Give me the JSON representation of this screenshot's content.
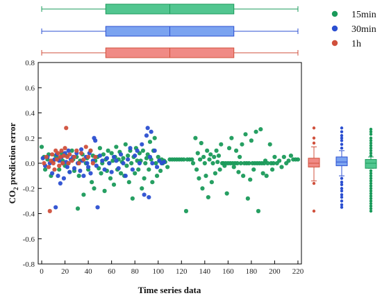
{
  "chart_data": {
    "type": "scatter",
    "xlabel": "Time series data",
    "ylabel_main": "CO",
    "ylabel_sub": "2",
    "ylabel_rest": " prediction error",
    "xlim": [
      -3,
      223
    ],
    "ylim": [
      -0.8,
      0.8
    ],
    "xticks": [
      "0",
      "20",
      "40",
      "60",
      "80",
      "100",
      "120",
      "140",
      "160",
      "180",
      "200",
      "220"
    ],
    "yticks": [
      "0.8",
      "0.6",
      "0.4",
      "0.2",
      "0.0",
      "-0.2",
      "-0.4",
      "-0.6",
      "-0.8"
    ],
    "legend_position": "top-right",
    "colors": {
      "15min": "#1a9a5a",
      "30min": "#2b4fd1",
      "1h": "#d0503c",
      "15min_box": "#52c690",
      "30min_box": "#7ba3f0",
      "1h_box": "#f08a85"
    },
    "series": [
      {
        "name": "15min",
        "color": "#1a9a5a",
        "box": {
          "min": 0,
          "q1": 55,
          "median": 110,
          "q3": 165,
          "max": 220
        },
        "points": [
          [
            0,
            0.13
          ],
          [
            2,
            0.05
          ],
          [
            3,
            -0.05
          ],
          [
            5,
            0.03
          ],
          [
            6,
            0.07
          ],
          [
            8,
            -0.1
          ],
          [
            10,
            0.02
          ],
          [
            12,
            0.06
          ],
          [
            14,
            0.04
          ],
          [
            15,
            -0.05
          ],
          [
            17,
            0.08
          ],
          [
            18,
            0.02
          ],
          [
            20,
            -0.02
          ],
          [
            21,
            0.06
          ],
          [
            23,
            0.0
          ],
          [
            24,
            -0.07
          ],
          [
            26,
            0.1
          ],
          [
            27,
            0.03
          ],
          [
            28,
            -0.06
          ],
          [
            30,
            0.05
          ],
          [
            31,
            -0.36
          ],
          [
            32,
            -0.1
          ],
          [
            33,
            0.02
          ],
          [
            35,
            0.07
          ],
          [
            36,
            -0.25
          ],
          [
            38,
            0.0
          ],
          [
            39,
            0.04
          ],
          [
            40,
            -0.05
          ],
          [
            42,
            0.1
          ],
          [
            43,
            -0.15
          ],
          [
            44,
            0.06
          ],
          [
            45,
            -0.2
          ],
          [
            46,
            0.02
          ],
          [
            48,
            0.05
          ],
          [
            49,
            -0.04
          ],
          [
            50,
            0.12
          ],
          [
            51,
            -0.08
          ],
          [
            52,
            0.0
          ],
          [
            53,
            0.07
          ],
          [
            54,
            -0.22
          ],
          [
            55,
            0.03
          ],
          [
            56,
            -0.06
          ],
          [
            57,
            0.1
          ],
          [
            58,
            0.0
          ],
          [
            59,
            -0.12
          ],
          [
            60,
            0.08
          ],
          [
            61,
            0.02
          ],
          [
            62,
            -0.17
          ],
          [
            63,
            0.05
          ],
          [
            64,
            0.13
          ],
          [
            65,
            -0.05
          ],
          [
            66,
            0.03
          ],
          [
            67,
            0.09
          ],
          [
            68,
            -0.08
          ],
          [
            69,
            0.01
          ],
          [
            70,
            0.04
          ],
          [
            71,
            -0.1
          ],
          [
            72,
            0.15
          ],
          [
            73,
            -0.02
          ],
          [
            74,
            0.06
          ],
          [
            75,
            -0.15
          ],
          [
            76,
            0.1
          ],
          [
            77,
            0.0
          ],
          [
            78,
            -0.28
          ],
          [
            79,
            0.05
          ],
          [
            80,
            -0.08
          ],
          [
            81,
            0.12
          ],
          [
            82,
            0.02
          ],
          [
            83,
            -0.05
          ],
          [
            84,
            0.08
          ],
          [
            85,
            0.02
          ],
          [
            86,
            -0.2
          ],
          [
            87,
            0.1
          ],
          [
            88,
            -0.12
          ],
          [
            89,
            0.0
          ],
          [
            90,
            0.04
          ],
          [
            91,
            0.07
          ],
          [
            92,
            -0.05
          ],
          [
            93,
            0.17
          ],
          [
            94,
            0.03
          ],
          [
            95,
            -0.15
          ],
          [
            96,
            0.1
          ],
          [
            97,
            0.2
          ],
          [
            98,
            0.0
          ],
          [
            99,
            -0.1
          ],
          [
            100,
            0.05
          ],
          [
            101,
            0.02
          ],
          [
            102,
            -0.06
          ],
          [
            103,
            0.03
          ],
          [
            104,
            0.0
          ],
          [
            105,
            0.02
          ],
          [
            106,
            0.01
          ],
          [
            108,
            -0.03
          ],
          [
            110,
            0.03
          ],
          [
            112,
            0.03
          ],
          [
            114,
            0.03
          ],
          [
            116,
            0.03
          ],
          [
            118,
            0.03
          ],
          [
            120,
            0.03
          ],
          [
            122,
            0.03
          ],
          [
            124,
            -0.38
          ],
          [
            125,
            0.03
          ],
          [
            127,
            0.03
          ],
          [
            129,
            0.03
          ],
          [
            130,
            0.0
          ],
          [
            132,
            0.2
          ],
          [
            133,
            -0.05
          ],
          [
            134,
            0.08
          ],
          [
            135,
            -0.12
          ],
          [
            136,
            0.03
          ],
          [
            137,
            0.16
          ],
          [
            138,
            -0.2
          ],
          [
            139,
            0.05
          ],
          [
            140,
            0.0
          ],
          [
            141,
            -0.1
          ],
          [
            142,
            0.1
          ],
          [
            143,
            -0.27
          ],
          [
            144,
            0.03
          ],
          [
            145,
            0.07
          ],
          [
            146,
            -0.15
          ],
          [
            147,
            0.0
          ],
          [
            148,
            0.05
          ],
          [
            149,
            -0.08
          ],
          [
            150,
            0.1
          ],
          [
            151,
            0.01
          ],
          [
            152,
            0.06
          ],
          [
            153,
            -0.05
          ],
          [
            154,
            0.15
          ],
          [
            155,
            0.0
          ],
          [
            156,
            0.0
          ],
          [
            157,
            -0.02
          ],
          [
            158,
            0.0
          ],
          [
            159,
            -0.24
          ],
          [
            160,
            0.0
          ],
          [
            161,
            0.12
          ],
          [
            162,
            0.0
          ],
          [
            163,
            0.2
          ],
          [
            164,
            0.0
          ],
          [
            165,
            -0.03
          ],
          [
            166,
            0.0
          ],
          [
            167,
            0.1
          ],
          [
            168,
            0.0
          ],
          [
            169,
            -0.07
          ],
          [
            170,
            0.05
          ],
          [
            171,
            0.0
          ],
          [
            172,
            0.15
          ],
          [
            173,
            -0.1
          ],
          [
            174,
            0.0
          ],
          [
            175,
            0.23
          ],
          [
            176,
            0.0
          ],
          [
            177,
            -0.28
          ],
          [
            178,
            0.0
          ],
          [
            179,
            -0.13
          ],
          [
            180,
            0.18
          ],
          [
            181,
            0.0
          ],
          [
            182,
            -0.05
          ],
          [
            183,
            0.0
          ],
          [
            184,
            0.25
          ],
          [
            185,
            0.0
          ],
          [
            186,
            -0.38
          ],
          [
            187,
            0.0
          ],
          [
            188,
            0.27
          ],
          [
            189,
            0.0
          ],
          [
            190,
            -0.08
          ],
          [
            191,
            0.0
          ],
          [
            192,
            0.02
          ],
          [
            193,
            -0.1
          ],
          [
            194,
            0.0
          ],
          [
            196,
            0.15
          ],
          [
            197,
            0.0
          ],
          [
            198,
            -0.05
          ],
          [
            199,
            0.0
          ],
          [
            200,
            0.05
          ],
          [
            202,
            0.0
          ],
          [
            204,
            0.02
          ],
          [
            206,
            -0.03
          ],
          [
            208,
            0.05
          ],
          [
            210,
            0.0
          ],
          [
            212,
            0.02
          ],
          [
            214,
            0.06
          ],
          [
            216,
            0.03
          ],
          [
            218,
            0.03
          ],
          [
            220,
            0.03
          ]
        ]
      },
      {
        "name": "30min",
        "color": "#2b4fd1",
        "box": {
          "min": 0,
          "q1": 55,
          "median": 110,
          "q3": 165,
          "max": 220
        },
        "points": [
          [
            1,
            0.04
          ],
          [
            3,
            -0.02
          ],
          [
            5,
            0.05
          ],
          [
            7,
            0.0
          ],
          [
            9,
            -0.08
          ],
          [
            11,
            0.03
          ],
          [
            12,
            -0.35
          ],
          [
            13,
            0.07
          ],
          [
            14,
            -0.1
          ],
          [
            15,
            0.02
          ],
          [
            16,
            -0.16
          ],
          [
            17,
            0.05
          ],
          [
            18,
            0.0
          ],
          [
            19,
            -0.12
          ],
          [
            20,
            0.08
          ],
          [
            21,
            0.01
          ],
          [
            22,
            -0.03
          ],
          [
            23,
            0.1
          ],
          [
            24,
            -0.07
          ],
          [
            25,
            0.03
          ],
          [
            27,
            0.05
          ],
          [
            28,
            -0.04
          ],
          [
            30,
            0.08
          ],
          [
            31,
            0.0
          ],
          [
            33,
            -0.06
          ],
          [
            34,
            0.11
          ],
          [
            35,
            0.02
          ],
          [
            36,
            -0.1
          ],
          [
            38,
            0.05
          ],
          [
            39,
            0.0
          ],
          [
            40,
            -0.03
          ],
          [
            41,
            0.08
          ],
          [
            42,
            -0.08
          ],
          [
            44,
            0.02
          ],
          [
            45,
            0.2
          ],
          [
            46,
            0.18
          ],
          [
            47,
            -0.02
          ],
          [
            48,
            -0.35
          ],
          [
            50,
            0.06
          ],
          [
            52,
            0.02
          ],
          [
            54,
            -0.05
          ],
          [
            56,
            0.04
          ],
          [
            58,
            0.0
          ],
          [
            60,
            -0.07
          ],
          [
            62,
            0.05
          ],
          [
            64,
            0.02
          ],
          [
            66,
            -0.04
          ],
          [
            68,
            0.07
          ],
          [
            70,
            0.0
          ],
          [
            72,
            -0.1
          ],
          [
            74,
            0.03
          ],
          [
            76,
            0.12
          ],
          [
            78,
            -0.05
          ],
          [
            80,
            0.06
          ],
          [
            82,
            0.1
          ],
          [
            84,
            0.0
          ],
          [
            86,
            0.15
          ],
          [
            88,
            -0.25
          ],
          [
            90,
            0.22
          ],
          [
            91,
            0.28
          ],
          [
            92,
            -0.27
          ],
          [
            93,
            0.05
          ],
          [
            94,
            0.25
          ],
          [
            95,
            0.0
          ],
          [
            97,
            0.1
          ],
          [
            99,
            -0.03
          ],
          [
            101,
            0.02
          ],
          [
            103,
            0.0
          ],
          [
            105,
            0.01
          ]
        ]
      },
      {
        "name": "1h",
        "color": "#d0503c",
        "box": {
          "min": 0,
          "q1": 55,
          "median": 110,
          "q3": 165,
          "max": 220
        },
        "points": [
          [
            2,
            0.0
          ],
          [
            4,
            0.05
          ],
          [
            6,
            -0.03
          ],
          [
            7,
            -0.38
          ],
          [
            8,
            0.02
          ],
          [
            9,
            0.07
          ],
          [
            10,
            0.0
          ],
          [
            11,
            -0.05
          ],
          [
            12,
            0.1
          ],
          [
            13,
            0.03
          ],
          [
            14,
            0.08
          ],
          [
            15,
            -0.02
          ],
          [
            16,
            0.05
          ],
          [
            17,
            0.1
          ],
          [
            18,
            0.0
          ],
          [
            19,
            0.06
          ],
          [
            20,
            0.12
          ],
          [
            21,
            0.28
          ],
          [
            22,
            0.05
          ],
          [
            23,
            0.0
          ],
          [
            24,
            0.07
          ],
          [
            26,
            0.02
          ],
          [
            28,
            0.05
          ],
          [
            30,
            0.1
          ],
          [
            32,
            0.0
          ],
          [
            34,
            0.08
          ],
          [
            36,
            0.03
          ],
          [
            38,
            0.13
          ],
          [
            40,
            0.05
          ],
          [
            42,
            0.1
          ],
          [
            44,
            0.0
          ],
          [
            46,
            0.05
          ]
        ]
      }
    ],
    "side_boxes": [
      {
        "name": "1h",
        "min": -0.14,
        "q1": -0.03,
        "median": 0.0,
        "q3": 0.04,
        "max": 0.13,
        "outliers": [
          0.28,
          0.2,
          0.16,
          -0.16,
          -0.38
        ]
      },
      {
        "name": "30min",
        "min": -0.1,
        "q1": -0.02,
        "median": 0.01,
        "q3": 0.05,
        "max": 0.1,
        "outliers": [
          0.28,
          0.25,
          0.22,
          0.2,
          0.18,
          0.15,
          0.12,
          -0.12,
          -0.15,
          -0.17,
          -0.2,
          -0.22,
          -0.25,
          -0.27,
          -0.3,
          -0.33,
          -0.35
        ]
      },
      {
        "name": "15min",
        "min": -0.04,
        "q1": -0.04,
        "median": 0.0,
        "q3": 0.03,
        "max": 0.05,
        "outliers": [
          0.27,
          0.25,
          0.23,
          0.2,
          0.18,
          0.16,
          0.14,
          0.12,
          0.1,
          0.08,
          0.06,
          -0.06,
          -0.08,
          -0.1,
          -0.12,
          -0.14,
          -0.16,
          -0.18,
          -0.2,
          -0.22,
          -0.24,
          -0.26,
          -0.28,
          -0.3,
          -0.32,
          -0.34,
          -0.36,
          -0.38
        ]
      }
    ]
  }
}
